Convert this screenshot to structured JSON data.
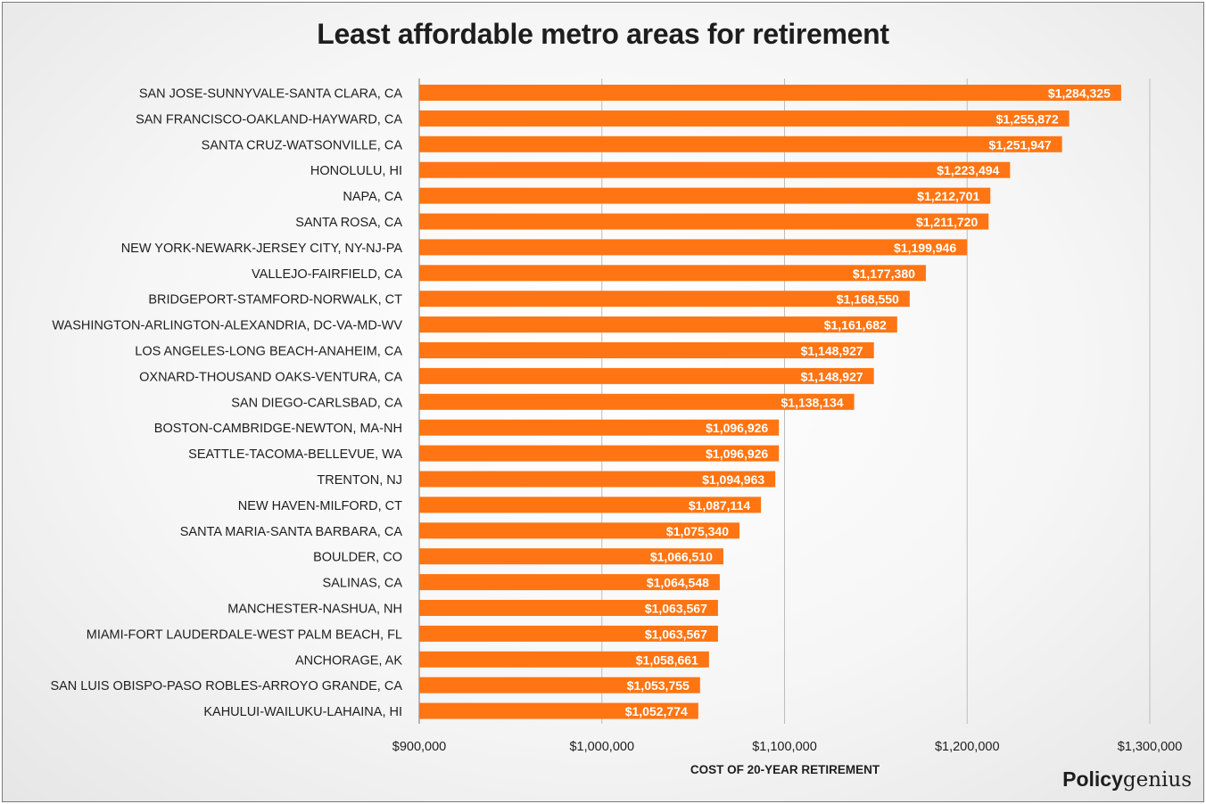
{
  "brand": {
    "part1": "Policy",
    "part2": "genius"
  },
  "colors": {
    "bar": "#ff7513",
    "grid": "#bdbdbd",
    "axis": "#8c8c8c"
  },
  "chart_data": {
    "type": "bar",
    "orientation": "horizontal",
    "title": "Least affordable metro areas for retirement",
    "xlabel": "COST OF 20-YEAR RETIREMENT",
    "ylabel": "",
    "xlim": [
      900000,
      1300000
    ],
    "ticks": [
      900000,
      1000000,
      1100000,
      1200000,
      1300000
    ],
    "tick_labels": [
      "$900,000",
      "$1,000,000",
      "$1,100,000",
      "$1,200,000",
      "$1,300,000"
    ],
    "grid": "vertical",
    "legend": "none",
    "categories": [
      "SAN JOSE-SUNNYVALE-SANTA CLARA, CA",
      "SAN FRANCISCO-OAKLAND-HAYWARD, CA",
      "SANTA CRUZ-WATSONVILLE, CA",
      "HONOLULU, HI",
      "NAPA, CA",
      "SANTA ROSA, CA",
      "NEW YORK-NEWARK-JERSEY CITY, NY-NJ-PA",
      "VALLEJO-FAIRFIELD, CA",
      "BRIDGEPORT-STAMFORD-NORWALK, CT",
      "WASHINGTON-ARLINGTON-ALEXANDRIA, DC-VA-MD-WV",
      "LOS ANGELES-LONG BEACH-ANAHEIM, CA",
      "OXNARD-THOUSAND OAKS-VENTURA, CA",
      "SAN DIEGO-CARLSBAD, CA",
      "BOSTON-CAMBRIDGE-NEWTON, MA-NH",
      "SEATTLE-TACOMA-BELLEVUE, WA",
      "TRENTON, NJ",
      "NEW HAVEN-MILFORD, CT",
      "SANTA MARIA-SANTA BARBARA, CA",
      "BOULDER, CO",
      "SALINAS, CA",
      "MANCHESTER-NASHUA, NH",
      "MIAMI-FORT LAUDERDALE-WEST PALM BEACH, FL",
      "ANCHORAGE, AK",
      "SAN LUIS OBISPO-PASO ROBLES-ARROYO GRANDE, CA",
      "KAHULUI-WAILUKU-LAHAINA, HI"
    ],
    "values": [
      1284325,
      1255872,
      1251947,
      1223494,
      1212701,
      1211720,
      1199946,
      1177380,
      1168550,
      1161682,
      1148927,
      1148927,
      1138134,
      1096926,
      1096926,
      1094963,
      1087114,
      1075340,
      1066510,
      1064548,
      1063567,
      1063567,
      1058661,
      1053755,
      1052774
    ],
    "value_labels": [
      "$1,284,325",
      "$1,255,872",
      "$1,251,947",
      "$1,223,494",
      "$1,212,701",
      "$1,211,720",
      "$1,199,946",
      "$1,177,380",
      "$1,168,550",
      "$1,161,682",
      "$1,148,927",
      "$1,148,927",
      "$1,138,134",
      "$1,096,926",
      "$1,096,926",
      "$1,094,963",
      "$1,087,114",
      "$1,075,340",
      "$1,066,510",
      "$1,064,548",
      "$1,063,567",
      "$1,063,567",
      "$1,058,661",
      "$1,053,755",
      "$1,052,774"
    ]
  }
}
